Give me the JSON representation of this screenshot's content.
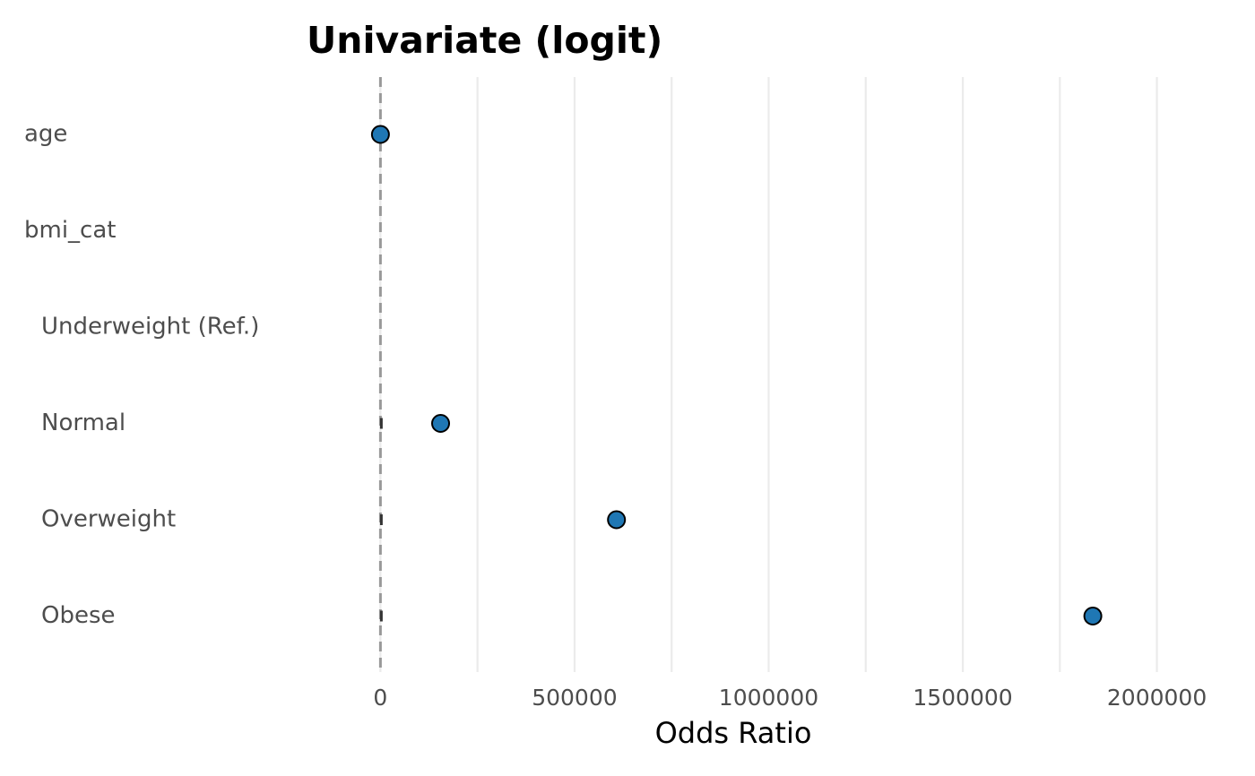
{
  "chart_data": {
    "type": "scatter",
    "title": "Univariate (logit)",
    "xlabel": "Odds Ratio",
    "ylabel": "",
    "xlim": [
      -54000,
      2128000
    ],
    "xticks": [
      0,
      500000,
      1000000,
      1500000,
      2000000
    ],
    "xtick_labels": [
      "0",
      "500000",
      "1000000",
      "1500000",
      "2000000"
    ],
    "reference_line": 1,
    "grid": true,
    "point_color": "#1f77b4",
    "rows": [
      {
        "label": "age",
        "indent": 0,
        "estimate": 1.05,
        "ci": [
          1.0,
          1.1
        ]
      },
      {
        "label": "bmi_cat",
        "indent": 0,
        "estimate": null,
        "ci": null
      },
      {
        "label": "Underweight (Ref.)",
        "indent": 1,
        "estimate": null,
        "ci": null
      },
      {
        "label": "Normal",
        "indent": 1,
        "estimate": 155000,
        "ci": [
          1,
          10
        ]
      },
      {
        "label": "Overweight",
        "indent": 1,
        "estimate": 608000,
        "ci": [
          1,
          10
        ]
      },
      {
        "label": "Obese",
        "indent": 1,
        "estimate": 1835000,
        "ci": [
          1,
          10
        ]
      }
    ]
  }
}
